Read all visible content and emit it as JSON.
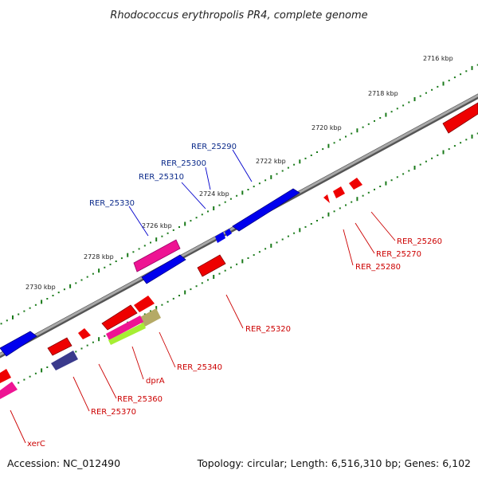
{
  "title": "Rhodococcus erythropolis PR4, complete genome",
  "footer": {
    "accession": "Accession: NC_012490",
    "summary": "Topology: circular; Length: 6,516,310 bp; Genes: 6,102"
  },
  "ruler": [
    "2716 kbp",
    "2718 kbp",
    "2720 kbp",
    "2722 kbp",
    "2724 kbp",
    "2726 kbp",
    "2728 kbp",
    "2730 kbp"
  ],
  "colors": {
    "forward_gene": "#0000ee",
    "reverse_gene": "#ee0000",
    "pink_feature": "#ee1493",
    "olive_feature": "#b5aa66",
    "lime_feature": "#a6ee33",
    "navy_feature": "#3a3a8c",
    "backbone": "#888888",
    "tick": "#1a7a1a",
    "forward_label": "#0b2a8a",
    "reverse_label": "#cc0000"
  },
  "forward_labels": [
    "RER_25290",
    "RER_25300",
    "RER_25310",
    "RER_25330"
  ],
  "reverse_labels": [
    "RER_25260",
    "RER_25270",
    "RER_25280",
    "RER_25320",
    "RER_25340",
    "dprA",
    "RER_25360",
    "RER_25370",
    "xerC"
  ]
}
